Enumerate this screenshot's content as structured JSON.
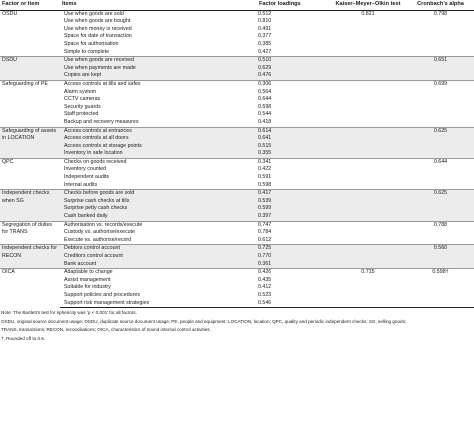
{
  "table": {
    "headers": [
      "Factor or item",
      "Items",
      "Factor loadings",
      "Kaiser–Meyer–Olkin test",
      "Cronbach’s alpha"
    ],
    "groups": [
      {
        "factor": "OSDU",
        "kmo": "0.821",
        "alpha": "0.798",
        "items": [
          {
            "label": "Use when goods are sold",
            "loading": "0.512"
          },
          {
            "label": "Use when goods are bought",
            "loading": "0.810"
          },
          {
            "label": "Use when money is received",
            "loading": "0.491"
          },
          {
            "label": "Space for date of transaction",
            "loading": "0.377"
          },
          {
            "label": "Space for authorisation",
            "loading": "0.385"
          },
          {
            "label": "Simple to complete",
            "loading": "0.427"
          }
        ]
      },
      {
        "factor": "DSDU",
        "kmo": "",
        "alpha": "0.651",
        "items": [
          {
            "label": "Use when goods are received",
            "loading": "0.510"
          },
          {
            "label": "Use when payments are made",
            "loading": "0.629"
          },
          {
            "label": "Copies are kept",
            "loading": "0.476"
          }
        ]
      },
      {
        "factor": "Safeguarding of PE",
        "kmo": "",
        "alpha": "0.699",
        "items": [
          {
            "label": "Access controls at tills and safes",
            "loading": "0.306"
          },
          {
            "label": "Alarm system",
            "loading": "0.564"
          },
          {
            "label": "CCTV cameras",
            "loading": "0.644"
          },
          {
            "label": "Security guards",
            "loading": "0.598"
          },
          {
            "label": "Staff protected",
            "loading": "0.544"
          },
          {
            "label": "Backup and recovery measures",
            "loading": "0.418"
          }
        ]
      },
      {
        "factor": "Safeguarding of assets in LOCATION",
        "kmo": "",
        "alpha": "0.625",
        "items": [
          {
            "label": "Access controls at entrances",
            "loading": "0.614"
          },
          {
            "label": "Access controls at all doors",
            "loading": "0.641"
          },
          {
            "label": "Access controls at storage points",
            "loading": "0.515"
          },
          {
            "label": "Inventory in safe location",
            "loading": "0.355"
          }
        ]
      },
      {
        "factor": "QPC",
        "kmo": "",
        "alpha": "0.644",
        "items": [
          {
            "label": "Checks on goods received",
            "loading": "0.341"
          },
          {
            "label": "Inventory counted",
            "loading": "0.422"
          },
          {
            "label": "Independent audits",
            "loading": "0.591"
          },
          {
            "label": "Internal audits",
            "loading": "0.598"
          }
        ]
      },
      {
        "factor": "Independent checks when SG",
        "kmo": "",
        "alpha": "0.625",
        "items": [
          {
            "label": "Checks before goods are sold",
            "loading": "0.417"
          },
          {
            "label": "Surprise cash checks at tills",
            "loading": "0.539"
          },
          {
            "label": "Surprise petty cash checks",
            "loading": "0.599"
          },
          {
            "label": "Cash banked daily",
            "loading": "0.397"
          }
        ]
      },
      {
        "factor": "Segregation of duties for TRANS",
        "kmo": "",
        "alpha": "0.788",
        "items": [
          {
            "label": "Authorisation vs. records/execute",
            "loading": "0.747"
          },
          {
            "label": "Custody vs. authorise/execute",
            "loading": "0.784"
          },
          {
            "label": "Execute vs. authorise/record",
            "loading": "0.612"
          }
        ]
      },
      {
        "factor": "Independent checks for RECON",
        "kmo": "",
        "alpha": "0.560",
        "items": [
          {
            "label": "Debtors control account",
            "loading": "0.725"
          },
          {
            "label": "Creditors control account",
            "loading": "0.770"
          },
          {
            "label": "Bank account",
            "loading": "0.361"
          }
        ]
      },
      {
        "factor": "OICA",
        "kmo": "0.715",
        "alpha": "0.598†",
        "items": [
          {
            "label": "Adaptable to change",
            "loading": "0.426"
          },
          {
            "label": "Assist management",
            "loading": "0.435"
          },
          {
            "label": "Suitable for industry",
            "loading": "0.412"
          },
          {
            "label": "Support policies and procedures",
            "loading": "0.523"
          },
          {
            "label": "Support risk management strategies",
            "loading": "0.546"
          }
        ]
      }
    ]
  },
  "notes": [
    "Note: The Bartlett’s test for sphericity was ’p < 0.001’ for all factors.",
    "OSDU, original source document usage; DSDU, duplicate source document usage; PE, people and equipment; LOCATION, location; QPC, quality and periodic independent checks; SG, selling goods;",
    "TRANS, transactions; RECON, reconciliations; OICA, characteristics of sound internal control activities.",
    "†, Rounded off to 0.6."
  ]
}
